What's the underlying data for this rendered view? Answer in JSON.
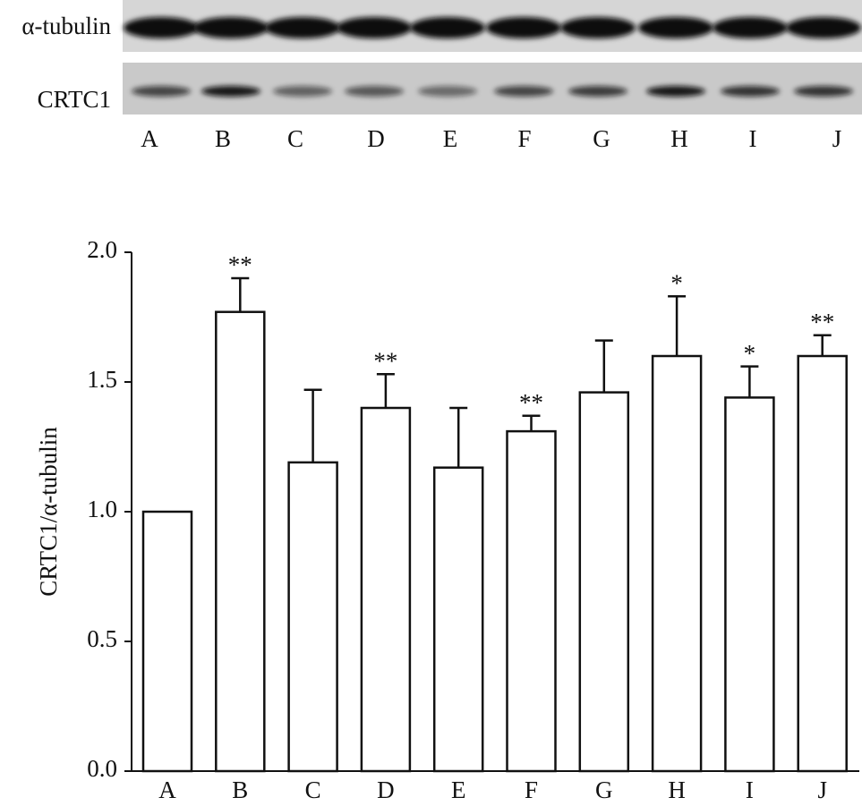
{
  "blot": {
    "rows": [
      "α-tubulin",
      "CRTC1"
    ],
    "lanes": [
      "A",
      "B",
      "C",
      "D",
      "E",
      "F",
      "G",
      "H",
      "I",
      "J"
    ]
  },
  "chart_data": {
    "type": "bar",
    "y_label": "CRTC1/α-tubulin",
    "categories": [
      "A",
      "B",
      "C",
      "D",
      "E",
      "F",
      "G",
      "H",
      "I",
      "J"
    ],
    "values": [
      1.0,
      1.77,
      1.19,
      1.4,
      1.17,
      1.31,
      1.46,
      1.6,
      1.44,
      1.6
    ],
    "errors": [
      null,
      0.13,
      0.28,
      0.13,
      0.23,
      0.06,
      0.2,
      0.23,
      0.12,
      0.08
    ],
    "significance": [
      null,
      "**",
      null,
      "**",
      null,
      "**",
      null,
      "*",
      "*",
      "**"
    ],
    "color": "#ffffff",
    "ylim": [
      0,
      2
    ],
    "yticks": [
      {
        "value": 0,
        "label": "0.0"
      },
      {
        "value": 0.5,
        "label": "0.5"
      },
      {
        "value": 1,
        "label": "1.0"
      },
      {
        "value": 1.5,
        "label": "1.5"
      },
      {
        "value": 2,
        "label": "2.0"
      }
    ]
  }
}
